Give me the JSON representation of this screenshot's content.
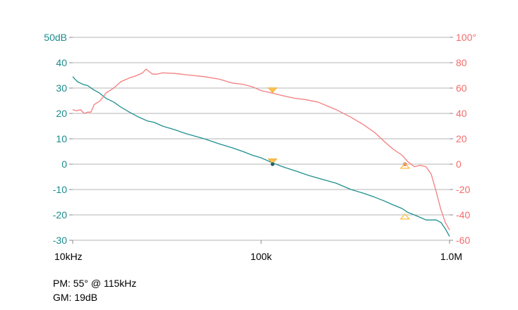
{
  "chart_data": {
    "type": "line",
    "title": "",
    "x_scale": "log",
    "xlim": [
      10000,
      1000000
    ],
    "x_tick_labels": [
      {
        "x": 10000,
        "label": "10kHz"
      },
      {
        "x": 100000,
        "label": "100k"
      },
      {
        "x": 1000000,
        "label": "1.0M"
      }
    ],
    "y_left": {
      "ylim": [
        -30,
        50
      ],
      "ticks": [
        50,
        40,
        30,
        20,
        10,
        0,
        -10,
        -20,
        -30
      ],
      "tick_labels": [
        "50dB",
        "40",
        "30",
        "20",
        "10",
        "0",
        "-10",
        "-20",
        "-30"
      ],
      "color": "#1a8c8c"
    },
    "y_right": {
      "ylim": [
        -60,
        100
      ],
      "ticks": [
        100,
        80,
        60,
        40,
        20,
        0,
        -20,
        -40,
        -60
      ],
      "tick_labels": [
        "100°",
        "80",
        "60",
        "40",
        "20",
        "0",
        "-20",
        "-40",
        "-60"
      ],
      "color": "#f36b6b"
    },
    "grid": true,
    "series": [
      {
        "axis": "left",
        "color": "#1f8f8f",
        "points": [
          [
            10000,
            34.5
          ],
          [
            10600,
            32.5
          ],
          [
            11300,
            31.5
          ],
          [
            12000,
            31
          ],
          [
            12800,
            29.5
          ],
          [
            13900,
            28
          ],
          [
            15000,
            26
          ],
          [
            16500,
            24.5
          ],
          [
            18000,
            22.5
          ],
          [
            20000,
            20.5
          ],
          [
            22500,
            18.5
          ],
          [
            25000,
            17
          ],
          [
            27000,
            16.5
          ],
          [
            28000,
            16
          ],
          [
            30000,
            15
          ],
          [
            35000,
            13.5
          ],
          [
            40000,
            12
          ],
          [
            50000,
            10
          ],
          [
            60000,
            8
          ],
          [
            70000,
            6.5
          ],
          [
            80000,
            5
          ],
          [
            90000,
            3.5
          ],
          [
            100000,
            2.5
          ],
          [
            115000,
            0.5
          ],
          [
            130000,
            -1
          ],
          [
            150000,
            -2.5
          ],
          [
            180000,
            -4.5
          ],
          [
            200000,
            -5.5
          ],
          [
            250000,
            -7.5
          ],
          [
            300000,
            -10
          ],
          [
            350000,
            -11.5
          ],
          [
            400000,
            -13
          ],
          [
            450000,
            -14.5
          ],
          [
            500000,
            -16
          ],
          [
            560000,
            -17.5
          ],
          [
            600000,
            -19
          ],
          [
            650000,
            -20
          ],
          [
            700000,
            -21
          ],
          [
            750000,
            -22
          ],
          [
            850000,
            -22
          ],
          [
            900000,
            -23
          ],
          [
            950000,
            -25.5
          ],
          [
            1000000,
            -28.5
          ]
        ]
      },
      {
        "axis": "right",
        "color": "#f47e7e",
        "points": [
          [
            10000,
            43
          ],
          [
            10500,
            42
          ],
          [
            11000,
            43
          ],
          [
            11500,
            40
          ],
          [
            12000,
            41
          ],
          [
            12500,
            41
          ],
          [
            13000,
            47
          ],
          [
            14000,
            50
          ],
          [
            15000,
            56
          ],
          [
            16500,
            60
          ],
          [
            18000,
            65
          ],
          [
            20000,
            68
          ],
          [
            22000,
            70
          ],
          [
            23500,
            72
          ],
          [
            24500,
            75
          ],
          [
            25500,
            73
          ],
          [
            26500,
            71
          ],
          [
            28000,
            71
          ],
          [
            30000,
            72
          ],
          [
            35000,
            71.5
          ],
          [
            40000,
            70.5
          ],
          [
            50000,
            69
          ],
          [
            60000,
            67
          ],
          [
            70000,
            64
          ],
          [
            80000,
            63
          ],
          [
            90000,
            61
          ],
          [
            100000,
            58
          ],
          [
            115000,
            56
          ],
          [
            130000,
            54
          ],
          [
            150000,
            52
          ],
          [
            170000,
            51
          ],
          [
            200000,
            49
          ],
          [
            250000,
            43
          ],
          [
            300000,
            37
          ],
          [
            350000,
            31
          ],
          [
            400000,
            25
          ],
          [
            450000,
            18
          ],
          [
            500000,
            12
          ],
          [
            560000,
            7
          ],
          [
            600000,
            2
          ],
          [
            650000,
            -2
          ],
          [
            700000,
            -1
          ],
          [
            750000,
            -2
          ],
          [
            800000,
            -8
          ],
          [
            850000,
            -22
          ],
          [
            900000,
            -36
          ],
          [
            950000,
            -46
          ],
          [
            1000000,
            -52
          ]
        ]
      }
    ],
    "markers": [
      {
        "type": "triangle-down",
        "axis": "right",
        "x": 115000,
        "y": 58,
        "color": "#ffc24d"
      },
      {
        "type": "triangle-down",
        "axis": "left",
        "x": 115000,
        "y": 1,
        "color": "#ffc24d"
      },
      {
        "type": "dot",
        "axis": "left",
        "x": 115000,
        "y": 0,
        "color": "#1f5f5f"
      },
      {
        "type": "dot",
        "axis": "right",
        "x": 580000,
        "y": 0,
        "color": "#d85a5a"
      },
      {
        "type": "triangle-up",
        "axis": "right",
        "x": 580000,
        "y": -1,
        "color": "#ffc24d"
      },
      {
        "type": "triangle-up",
        "axis": "left",
        "x": 580000,
        "y": -20.5,
        "color": "#ffc24d"
      }
    ]
  },
  "notes": {
    "pm": "PM: 55° @ 115kHz",
    "gm": "GM: 19dB"
  }
}
